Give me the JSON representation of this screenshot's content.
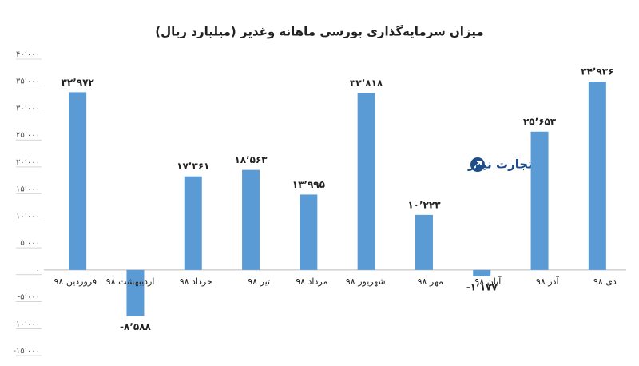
{
  "chart_data": {
    "type": "bar",
    "title": "میزان سرمایه‌گذاری بورسی ماهانه وغدیر (میلیارد ریال)",
    "watermark": "تجارت نیوز",
    "categories": [
      "فروردین ۹۸",
      "اردیبهشت ۹۸",
      "خرداد ۹۸",
      "تیر ۹۸",
      "مرداد ۹۸",
      "شهریور ۹۸",
      "مهر ۹۸",
      "آبان ۹۸",
      "آذر ۹۸",
      "دی ۹۸"
    ],
    "values": [
      32972,
      -8588,
      17361,
      18563,
      13995,
      32818,
      10223,
      -1177,
      25653,
      34936
    ],
    "value_labels": [
      "۳۲٬۹۷۲",
      "-۸٬۵۸۸",
      "۱۷٬۳۶۱",
      "۱۸٬۵۶۳",
      "۱۳٬۹۹۵",
      "۳۲٬۸۱۸",
      "۱۰٬۲۲۳",
      "-۱٬۱۷۷",
      "۲۵٬۶۵۳",
      "۳۴٬۹۳۶"
    ],
    "color": "#5b9bd5",
    "ylim": [
      -15000,
      40000
    ],
    "yticks": [
      {
        "value": -15000,
        "label": "-۱۵٬۰۰۰"
      },
      {
        "value": -10000,
        "label": "-۱۰٬۰۰۰"
      },
      {
        "value": -5000,
        "label": "-۵٬۰۰۰"
      },
      {
        "value": 0,
        "label": "۰"
      },
      {
        "value": 5000,
        "label": "۵٬۰۰۰"
      },
      {
        "value": 10000,
        "label": "۱۰٬۰۰۰"
      },
      {
        "value": 15000,
        "label": "۱۵٬۰۰۰"
      },
      {
        "value": 20000,
        "label": "۲۰٬۰۰۰"
      },
      {
        "value": 25000,
        "label": "۲۵٬۰۰۰"
      },
      {
        "value": 30000,
        "label": "۳۰٬۰۰۰"
      },
      {
        "value": 35000,
        "label": "۳۵٬۰۰۰"
      },
      {
        "value": 40000,
        "label": "۴۰٬۰۰۰"
      }
    ],
    "grid": false
  }
}
